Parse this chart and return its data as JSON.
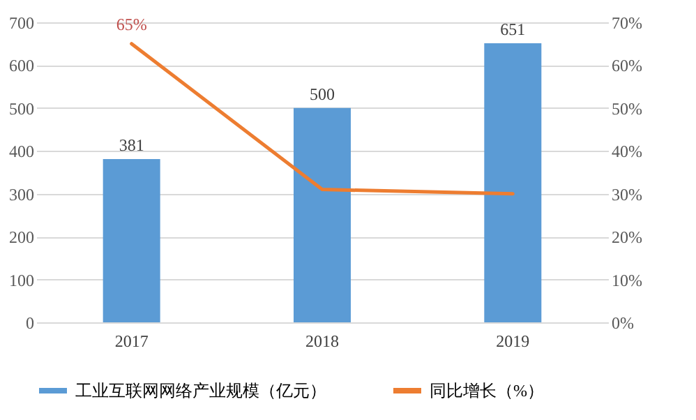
{
  "chart_data": {
    "type": "bar",
    "categories": [
      "2017",
      "2018",
      "2019"
    ],
    "series": [
      {
        "name": "工业互联网网络产业规模（亿元）",
        "color": "#5b9bd5",
        "values": [
          381,
          500,
          651
        ],
        "value_labels": [
          "381",
          "500",
          "651"
        ]
      },
      {
        "name": "同比增长（%）",
        "type": "line",
        "axis": "y2",
        "color": "#ed7d31",
        "values": [
          65,
          31,
          30
        ],
        "value_labels": [
          "65%",
          null,
          null
        ]
      }
    ],
    "ylim": [
      0,
      700
    ],
    "yticks": [
      0,
      100,
      200,
      300,
      400,
      500,
      600,
      700
    ],
    "y2lim": [
      0,
      70
    ],
    "y2ticks": [
      {
        "value": 0,
        "label": "0%"
      },
      {
        "value": 10,
        "label": "10%"
      },
      {
        "value": 20,
        "label": "20%"
      },
      {
        "value": 30,
        "label": "30%"
      },
      {
        "value": 40,
        "label": "40%"
      },
      {
        "value": 50,
        "label": "50%"
      },
      {
        "value": 60,
        "label": "60%"
      },
      {
        "value": 70,
        "label": "70%"
      }
    ],
    "grid": "y",
    "legend": "bottom",
    "marker": "none",
    "line_style": "solid"
  }
}
